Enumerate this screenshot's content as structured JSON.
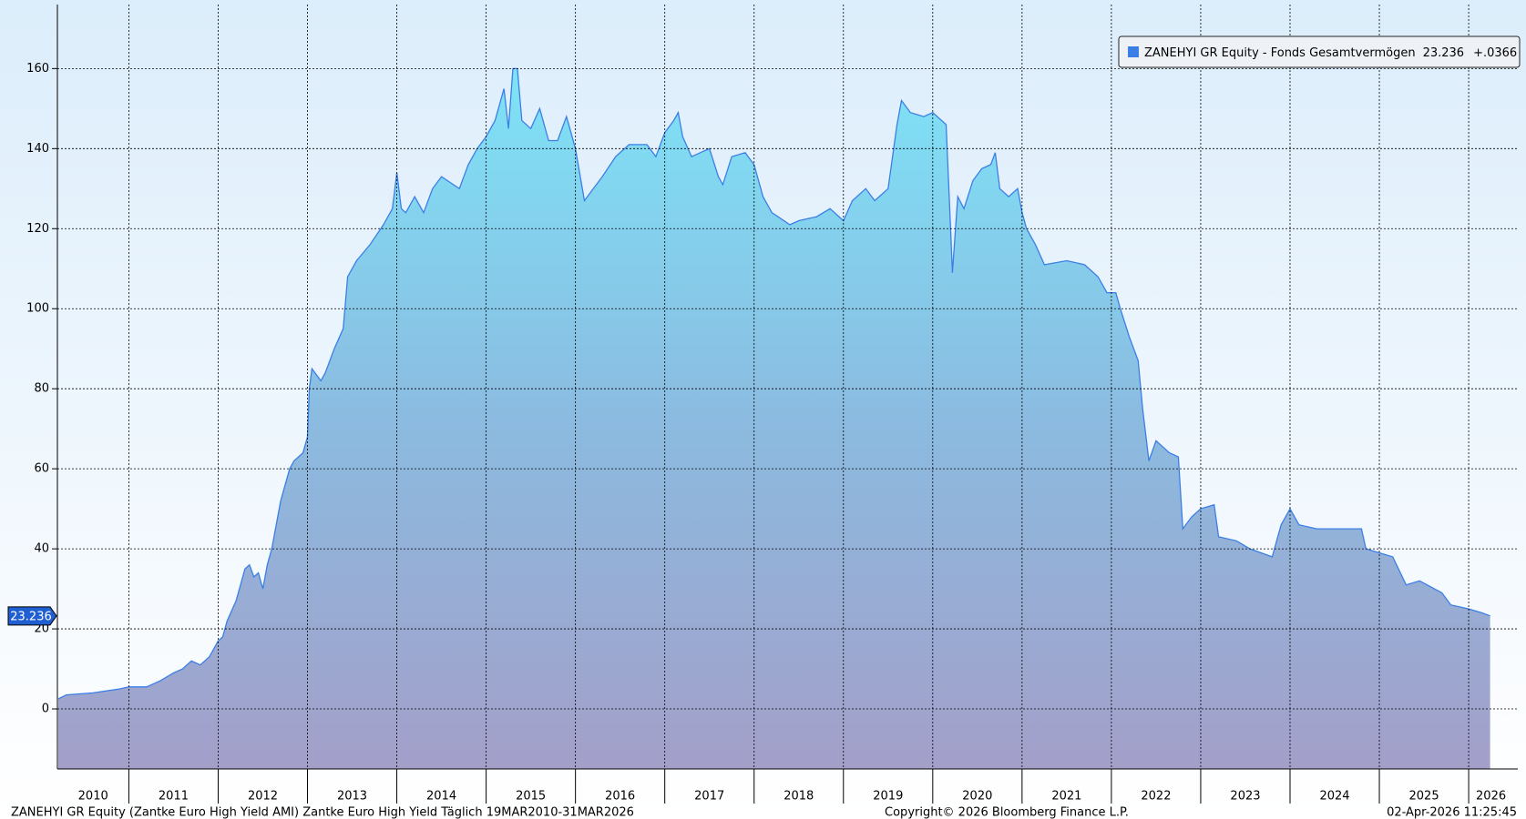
{
  "chart_data": {
    "type": "area",
    "series": [
      {
        "name": "ZANEHYI GR Equity - Fonds Gesamtvermögen",
        "color": "#3b7fe6",
        "x": [
          2010.21,
          2010.3,
          2010.6,
          2010.9,
          2011.0,
          2011.2,
          2011.35,
          2011.5,
          2011.6,
          2011.7,
          2011.8,
          2011.9,
          2012.0,
          2012.05,
          2012.1,
          2012.2,
          2012.3,
          2012.35,
          2012.4,
          2012.45,
          2012.5,
          2012.55,
          2012.6,
          2012.7,
          2012.8,
          2012.85,
          2012.95,
          2013.0,
          2013.02,
          2013.05,
          2013.15,
          2013.2,
          2013.3,
          2013.4,
          2013.45,
          2013.55,
          2013.7,
          2013.85,
          2013.95,
          2014.0,
          2014.05,
          2014.1,
          2014.2,
          2014.3,
          2014.4,
          2014.5,
          2014.7,
          2014.8,
          2014.9,
          2015.0,
          2015.1,
          2015.2,
          2015.25,
          2015.3,
          2015.35,
          2015.4,
          2015.5,
          2015.6,
          2015.7,
          2015.8,
          2015.9,
          2016.0,
          2016.1,
          2016.2,
          2016.3,
          2016.45,
          2016.6,
          2016.8,
          2016.9,
          2017.0,
          2017.1,
          2017.15,
          2017.2,
          2017.3,
          2017.4,
          2017.5,
          2017.6,
          2017.65,
          2017.75,
          2017.9,
          2018.0,
          2018.1,
          2018.2,
          2018.4,
          2018.5,
          2018.7,
          2018.85,
          2019.0,
          2019.1,
          2019.25,
          2019.35,
          2019.5,
          2019.55,
          2019.6,
          2019.65,
          2019.75,
          2019.9,
          2020.0,
          2020.15,
          2020.2,
          2020.22,
          2020.28,
          2020.35,
          2020.45,
          2020.55,
          2020.65,
          2020.7,
          2020.75,
          2020.85,
          2020.95,
          2021.0,
          2021.05,
          2021.15,
          2021.25,
          2021.5,
          2021.7,
          2021.85,
          2021.95,
          2022.05,
          2022.1,
          2022.2,
          2022.3,
          2022.35,
          2022.42,
          2022.5,
          2022.65,
          2022.75,
          2022.8,
          2022.9,
          2023.0,
          2023.15,
          2023.2,
          2023.4,
          2023.55,
          2023.8,
          2023.9,
          2024.0,
          2024.1,
          2024.3,
          2024.6,
          2024.8,
          2024.85,
          2025.0,
          2025.15,
          2025.3,
          2025.45,
          2025.7,
          2025.8,
          2026.0,
          2026.15,
          2026.24
        ],
        "values": [
          2.5,
          3.5,
          4,
          5,
          5.5,
          5.5,
          7,
          9,
          10,
          12,
          11,
          13,
          17,
          18,
          22,
          27,
          35,
          36,
          33,
          34,
          30,
          36,
          40,
          52,
          60,
          62,
          64,
          68,
          80,
          85,
          82,
          84,
          90,
          95,
          108,
          112,
          116,
          121,
          125,
          134,
          125,
          124,
          128,
          124,
          130,
          133,
          130,
          136,
          140,
          143,
          147,
          155,
          145,
          160,
          160,
          147,
          145,
          150,
          142,
          142,
          148,
          140,
          127,
          130,
          133,
          138,
          141,
          141,
          138,
          144,
          147,
          149,
          143,
          138,
          139,
          140,
          133,
          131,
          138,
          139,
          136,
          128,
          124,
          121,
          122,
          123,
          125,
          122,
          127,
          130,
          127,
          130,
          138,
          146,
          152,
          149,
          148,
          149,
          146,
          120,
          109,
          128,
          125,
          132,
          135,
          136,
          139,
          130,
          128,
          130,
          124,
          120,
          116,
          111,
          112,
          111,
          108,
          104,
          104,
          100,
          93,
          87,
          75,
          62,
          67,
          64,
          63,
          45,
          48,
          50,
          51,
          43,
          42,
          40,
          38,
          46,
          50,
          46,
          45,
          45,
          45,
          40,
          39,
          38,
          31,
          32,
          29,
          26,
          25,
          24,
          23.236
        ]
      }
    ],
    "change": "+.0366",
    "xlim": [
      2010.2,
      2026.55
    ],
    "xgrid": [
      2011,
      2012,
      2013,
      2014,
      2015,
      2016,
      2017,
      2018,
      2019,
      2020,
      2021,
      2022,
      2023,
      2024,
      2025,
      2026
    ],
    "xticks": [
      {
        "value": 2010.6,
        "label": "2010"
      },
      {
        "value": 2011.5,
        "label": "2011"
      },
      {
        "value": 2012.5,
        "label": "2012"
      },
      {
        "value": 2013.5,
        "label": "2013"
      },
      {
        "value": 2014.5,
        "label": "2014"
      },
      {
        "value": 2015.5,
        "label": "2015"
      },
      {
        "value": 2016.5,
        "label": "2016"
      },
      {
        "value": 2017.5,
        "label": "2017"
      },
      {
        "value": 2018.5,
        "label": "2018"
      },
      {
        "value": 2019.5,
        "label": "2019"
      },
      {
        "value": 2020.5,
        "label": "2020"
      },
      {
        "value": 2021.5,
        "label": "2021"
      },
      {
        "value": 2022.5,
        "label": "2022"
      },
      {
        "value": 2023.5,
        "label": "2023"
      },
      {
        "value": 2024.5,
        "label": "2024"
      },
      {
        "value": 2025.5,
        "label": "2025"
      },
      {
        "value": 2026.25,
        "label": "2026"
      }
    ],
    "ylim": [
      -15,
      176
    ],
    "yticks": [
      0,
      20,
      40,
      60,
      80,
      100,
      120,
      140,
      160
    ],
    "grid": true,
    "legend": "upper right",
    "footer_left": "ZANEHYI GR Equity (Zantke Euro High Yield AMI) Zantke Euro High Yield Täglich 19MAR2010-31MAR2026",
    "footer_center": "Copyright© 2026 Bloomberg Finance L.P.",
    "footer_right": "02-Apr-2026 11:25:45"
  }
}
